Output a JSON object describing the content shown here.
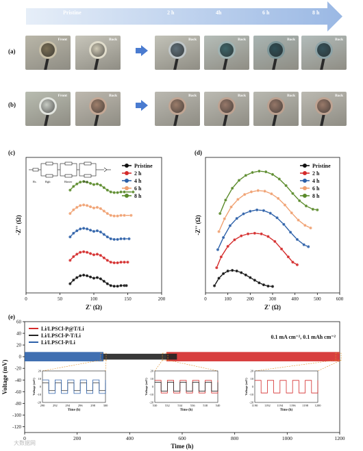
{
  "timeline": {
    "labels": [
      "Pristine",
      "2 h",
      "4h",
      "6 h",
      "8 h"
    ]
  },
  "panel_labels": {
    "a": "(a)",
    "b": "(b)",
    "c": "(c)",
    "d": "(d)",
    "e": "(e)"
  },
  "row_a": {
    "photos": [
      {
        "label": "Front",
        "face": "#7a6f55",
        "rim": "#c8c0a8",
        "bg": "#b9b6a8"
      },
      {
        "label": "Back",
        "face": "#cfc9b5",
        "rim": "#e0dccb",
        "bg": "#c7c5ba"
      },
      {
        "label": "Back",
        "face": "#5f6f78",
        "rim": "#bfc6c8",
        "bg": "#c2c2b8"
      },
      {
        "label": "Back",
        "face": "#3e6468",
        "rim": "#9fb3b3",
        "bg": "#b5bdb8"
      },
      {
        "label": "Back",
        "face": "#2f4e55",
        "rim": "#7c9598",
        "bg": "#a8b4b2"
      },
      {
        "label": "Back",
        "face": "#35525a",
        "rim": "#8ca2a6",
        "bg": "#b2bcba"
      }
    ]
  },
  "row_b": {
    "photos": [
      {
        "label": "Front",
        "face": "#c8ccc4",
        "rim": "#e3e6e0",
        "bg": "#b8bcb0"
      },
      {
        "label": "Back",
        "face": "#a0806c",
        "rim": "#c4a895",
        "bg": "#bdb8ae"
      },
      {
        "label": "Back",
        "face": "#9c7d6b",
        "rim": "#c0a593",
        "bg": "#bab8b0"
      },
      {
        "label": "Back",
        "face": "#98796a",
        "rim": "#bda291",
        "bg": "#bbbab2"
      },
      {
        "label": "Back",
        "face": "#967768",
        "rim": "#bba08f",
        "bg": "#b8b8b0"
      },
      {
        "label": "Back",
        "face": "#9a7a6a",
        "rim": "#bea392",
        "bg": "#bbb9b1"
      }
    ]
  },
  "chart_data": [
    {
      "panel": "c",
      "type": "scatter",
      "xlabel": "Z' (Ω)",
      "ylabel": "-Z'' (Ω)",
      "xlim": [
        0,
        200
      ],
      "xticks": [
        0,
        50,
        100,
        150,
        200
      ],
      "legend_placement": "top-right",
      "circuit_labels": [
        "Rs",
        "Rgb",
        "Rinter",
        "Rct"
      ],
      "series": [
        {
          "name": "Pristine",
          "color": "#111111",
          "offset": 0,
          "points": [
            [
              65,
              6
            ],
            [
              70,
              12
            ],
            [
              75,
              16
            ],
            [
              80,
              19
            ],
            [
              85,
              20
            ],
            [
              90,
              19
            ],
            [
              95,
              17
            ],
            [
              100,
              15
            ],
            [
              105,
              16
            ],
            [
              110,
              14
            ],
            [
              115,
              10
            ],
            [
              120,
              6
            ],
            [
              125,
              3
            ],
            [
              130,
              2
            ],
            [
              135,
              2
            ],
            [
              140,
              3
            ],
            [
              145,
              3
            ],
            [
              148,
              3
            ]
          ]
        },
        {
          "name": "2 h",
          "color": "#d42a2a",
          "offset": 38,
          "points": [
            [
              65,
              6
            ],
            [
              70,
              12
            ],
            [
              75,
              16
            ],
            [
              80,
              19
            ],
            [
              85,
              20
            ],
            [
              90,
              19
            ],
            [
              95,
              17
            ],
            [
              100,
              15
            ],
            [
              105,
              16
            ],
            [
              110,
              14
            ],
            [
              115,
              10
            ],
            [
              120,
              6
            ],
            [
              125,
              3
            ],
            [
              130,
              2
            ],
            [
              135,
              2
            ],
            [
              140,
              3
            ],
            [
              145,
              3
            ],
            [
              150,
              3
            ]
          ]
        },
        {
          "name": "4 h",
          "color": "#2b5fa8",
          "offset": 76,
          "points": [
            [
              65,
              6
            ],
            [
              70,
              12
            ],
            [
              75,
              16
            ],
            [
              80,
              19
            ],
            [
              85,
              20
            ],
            [
              90,
              19
            ],
            [
              95,
              17
            ],
            [
              100,
              15
            ],
            [
              105,
              16
            ],
            [
              110,
              14
            ],
            [
              115,
              10
            ],
            [
              120,
              6
            ],
            [
              125,
              3
            ],
            [
              130,
              2
            ],
            [
              135,
              2
            ],
            [
              140,
              3
            ],
            [
              145,
              3
            ],
            [
              152,
              3
            ]
          ]
        },
        {
          "name": "6 h",
          "color": "#f0a070",
          "offset": 114,
          "points": [
            [
              65,
              6
            ],
            [
              70,
              12
            ],
            [
              75,
              16
            ],
            [
              80,
              19
            ],
            [
              85,
              20
            ],
            [
              90,
              19
            ],
            [
              95,
              17
            ],
            [
              100,
              15
            ],
            [
              105,
              16
            ],
            [
              110,
              14
            ],
            [
              115,
              10
            ],
            [
              120,
              6
            ],
            [
              125,
              3
            ],
            [
              130,
              2
            ],
            [
              135,
              2
            ],
            [
              140,
              3
            ],
            [
              145,
              3
            ],
            [
              155,
              3
            ]
          ]
        },
        {
          "name": "8 h",
          "color": "#5a8a2a",
          "offset": 152,
          "points": [
            [
              65,
              6
            ],
            [
              70,
              12
            ],
            [
              75,
              16
            ],
            [
              80,
              19
            ],
            [
              85,
              20
            ],
            [
              90,
              19
            ],
            [
              95,
              17
            ],
            [
              100,
              15
            ],
            [
              105,
              16
            ],
            [
              110,
              14
            ],
            [
              115,
              10
            ],
            [
              120,
              6
            ],
            [
              125,
              3
            ],
            [
              130,
              2
            ],
            [
              135,
              2
            ],
            [
              140,
              3
            ],
            [
              145,
              3
            ],
            [
              158,
              3
            ]
          ]
        }
      ]
    },
    {
      "panel": "d",
      "type": "scatter",
      "xlabel": "Z' (Ω)",
      "ylabel": "-Z'' (Ω)",
      "xlim": [
        0,
        600
      ],
      "xticks": [
        0,
        100,
        200,
        300,
        400,
        500,
        600
      ],
      "legend_placement": "top-right",
      "series": [
        {
          "name": "Pristine",
          "color": "#111111",
          "offset": 0,
          "points": [
            [
              40,
              5
            ],
            [
              60,
              28
            ],
            [
              80,
              42
            ],
            [
              100,
              50
            ],
            [
              120,
              52
            ],
            [
              140,
              50
            ],
            [
              160,
              45
            ],
            [
              180,
              38
            ],
            [
              200,
              30
            ],
            [
              220,
              22
            ],
            [
              240,
              14
            ],
            [
              260,
              8
            ],
            [
              280,
              4
            ],
            [
              300,
              3
            ]
          ]
        },
        {
          "name": "2 h",
          "color": "#d42a2a",
          "offset": 55,
          "points": [
            [
              50,
              5
            ],
            [
              70,
              38
            ],
            [
              100,
              70
            ],
            [
              130,
              90
            ],
            [
              160,
              102
            ],
            [
              190,
              108
            ],
            [
              220,
              110
            ],
            [
              250,
              108
            ],
            [
              280,
              100
            ],
            [
              310,
              85
            ],
            [
              340,
              62
            ],
            [
              370,
              38
            ],
            [
              390,
              22
            ],
            [
              410,
              14
            ]
          ]
        },
        {
          "name": "4 h",
          "color": "#2b5fa8",
          "offset": 110,
          "points": [
            [
              55,
              5
            ],
            [
              80,
              42
            ],
            [
              110,
              78
            ],
            [
              140,
              100
            ],
            [
              170,
              114
            ],
            [
              200,
              122
            ],
            [
              230,
              126
            ],
            [
              260,
              124
            ],
            [
              290,
              116
            ],
            [
              320,
              102
            ],
            [
              350,
              82
            ],
            [
              380,
              58
            ],
            [
              410,
              36
            ],
            [
              440,
              20
            ],
            [
              460,
              14
            ]
          ]
        },
        {
          "name": "6 h",
          "color": "#f0a070",
          "offset": 165,
          "points": [
            [
              60,
              5
            ],
            [
              85,
              44
            ],
            [
              115,
              80
            ],
            [
              145,
              103
            ],
            [
              175,
              118
            ],
            [
              205,
              126
            ],
            [
              235,
              130
            ],
            [
              265,
              128
            ],
            [
              295,
              120
            ],
            [
              325,
              106
            ],
            [
              355,
              86
            ],
            [
              385,
              62
            ],
            [
              415,
              40
            ],
            [
              445,
              24
            ],
            [
              470,
              16
            ]
          ]
        },
        {
          "name": "8 h",
          "color": "#5a8a2a",
          "offset": 220,
          "points": [
            [
              65,
              5
            ],
            [
              90,
              46
            ],
            [
              120,
              82
            ],
            [
              150,
              106
            ],
            [
              180,
              121
            ],
            [
              210,
              130
            ],
            [
              240,
              134
            ],
            [
              270,
              132
            ],
            [
              300,
              124
            ],
            [
              330,
              110
            ],
            [
              360,
              90
            ],
            [
              390,
              66
            ],
            [
              420,
              44
            ],
            [
              450,
              28
            ],
            [
              480,
              18
            ],
            [
              500,
              16
            ]
          ]
        }
      ]
    },
    {
      "panel": "e",
      "type": "line",
      "xlabel": "Time (h)",
      "ylabel": "Voltage (mV)",
      "xlim": [
        0,
        1200
      ],
      "ylim": [
        -130,
        60
      ],
      "xticks": [
        0,
        200,
        400,
        600,
        800,
        1000,
        1200
      ],
      "yticks": [
        60,
        40,
        20,
        0,
        -20,
        -40,
        -60,
        -80,
        -100,
        -120
      ],
      "annotation": "0.1 mA cm⁻², 0.1 mAh cm⁻²",
      "series": [
        {
          "name": "Li/LPSCl-P@T/Li",
          "color": "#d42a2a",
          "range": [
            540,
            1200
          ],
          "amplitude": 8
        },
        {
          "name": "Li/LPSCl-P-T/Li",
          "color": "#222222",
          "range": [
            290,
            580
          ],
          "amplitude": 5
        },
        {
          "name": "Li/LPSCl-P/Li",
          "color": "#2b5fa8",
          "range": [
            0,
            300
          ],
          "amplitude": 8
        }
      ],
      "insets": [
        {
          "xlim": [
            290,
            300
          ],
          "xticks": [
            290,
            292,
            294,
            296,
            298,
            300
          ],
          "ylim": [
            -20,
            20
          ],
          "yticks": [
            20,
            10,
            0,
            -10,
            -20
          ],
          "xlabel": "Time (h)",
          "ylabel": "Voltage (mV)"
        },
        {
          "xlim": [
            530,
            540
          ],
          "xticks": [
            530,
            532,
            534,
            536,
            538,
            540
          ],
          "ylim": [
            -20,
            20
          ],
          "yticks": [
            20,
            10,
            0,
            -10,
            -20
          ],
          "xlabel": "Time (h)",
          "ylabel": "Voltage (mV)"
        },
        {
          "xlim": [
            1190,
            1200
          ],
          "xticks": [
            1190,
            1192,
            1194,
            1196,
            1198,
            1200
          ],
          "ylim": [
            -20,
            20
          ],
          "yticks": [
            20,
            10,
            0,
            -10,
            -20
          ],
          "xlabel": "Time (h)",
          "ylabel": "Voltage (mV)"
        }
      ]
    }
  ],
  "watermark": "大数据网"
}
